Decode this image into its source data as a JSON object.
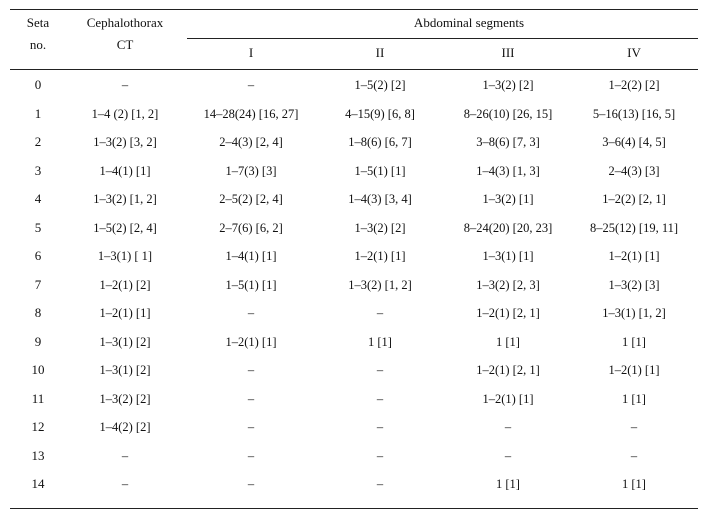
{
  "header": {
    "seta": [
      "Seta",
      "no."
    ],
    "ceph": [
      "Cephalothorax",
      "CT"
    ],
    "abdominal": "Abdominal  segments",
    "segments": [
      "I",
      "II",
      "III",
      "IV"
    ]
  },
  "rows": [
    {
      "seta": "0",
      "ct": "–",
      "s1": "–",
      "s2": "1–5(2) [2]",
      "s3": "1–3(2) [2]",
      "s4": "1–2(2) [2]"
    },
    {
      "seta": "1",
      "ct": "1–4 (2) [1, 2]",
      "s1": "14–28(24) [16, 27]",
      "s2": "4–15(9) [6, 8]",
      "s3": "8–26(10) [26, 15]",
      "s4": "5–16(13) [16, 5]"
    },
    {
      "seta": "2",
      "ct": "1–3(2) [3, 2]",
      "s1": "2–4(3) [2, 4]",
      "s2": "1–8(6) [6, 7]",
      "s3": "3–8(6) [7, 3]",
      "s4": "3–6(4) [4, 5]"
    },
    {
      "seta": "3",
      "ct": "1–4(1) [1]",
      "s1": "1–7(3) [3]",
      "s2": "1–5(1) [1]",
      "s3": "1–4(3) [1, 3]",
      "s4": "2–4(3) [3]"
    },
    {
      "seta": "4",
      "ct": "1–3(2) [1, 2]",
      "s1": "2–5(2) [2, 4]",
      "s2": "1–4(3) [3, 4]",
      "s3": "1–3(2) [1]",
      "s4": "1–2(2) [2, 1]"
    },
    {
      "seta": "5",
      "ct": "1–5(2) [2, 4]",
      "s1": "2–7(6) [6, 2]",
      "s2": "1–3(2) [2]",
      "s3": "8–24(20) [20, 23]",
      "s4": "8–25(12) [19, 11]"
    },
    {
      "seta": "6",
      "ct": "1–3(1) [ 1]",
      "s1": "1–4(1) [1]",
      "s2": "1–2(1) [1]",
      "s3": "1–3(1) [1]",
      "s4": "1–2(1) [1]"
    },
    {
      "seta": "7",
      "ct": "1–2(1) [2]",
      "s1": "1–5(1) [1]",
      "s2": "1–3(2) [1, 2]",
      "s3": "1–3(2) [2, 3]",
      "s4": "1–3(2) [3]"
    },
    {
      "seta": "8",
      "ct": "1–2(1) [1]",
      "s1": "–",
      "s2": "–",
      "s3": "1–2(1) [2, 1]",
      "s4": "1–3(1) [1, 2]"
    },
    {
      "seta": "9",
      "ct": "1–3(1) [2]",
      "s1": "1–2(1) [1]",
      "s2": "1 [1]",
      "s3": "1 [1]",
      "s4": "1 [1]"
    },
    {
      "seta": "10",
      "ct": "1–3(1)  [2]",
      "s1": "–",
      "s2": "–",
      "s3": "1–2(1) [2, 1]",
      "s4": "1–2(1) [1]"
    },
    {
      "seta": "11",
      "ct": "1–3(2) [2]",
      "s1": "–",
      "s2": "–",
      "s3": "1–2(1) [1]",
      "s4": "1 [1]"
    },
    {
      "seta": "12",
      "ct": "1–4(2) [2]",
      "s1": "–",
      "s2": "–",
      "s3": "–",
      "s4": "–"
    },
    {
      "seta": "13",
      "ct": "–",
      "s1": "–",
      "s2": "–",
      "s3": "–",
      "s4": "–"
    },
    {
      "seta": "14",
      "ct": "–",
      "s1": "–",
      "s2": "–",
      "s3": "1 [1]",
      "s4": "1 [1]"
    }
  ]
}
